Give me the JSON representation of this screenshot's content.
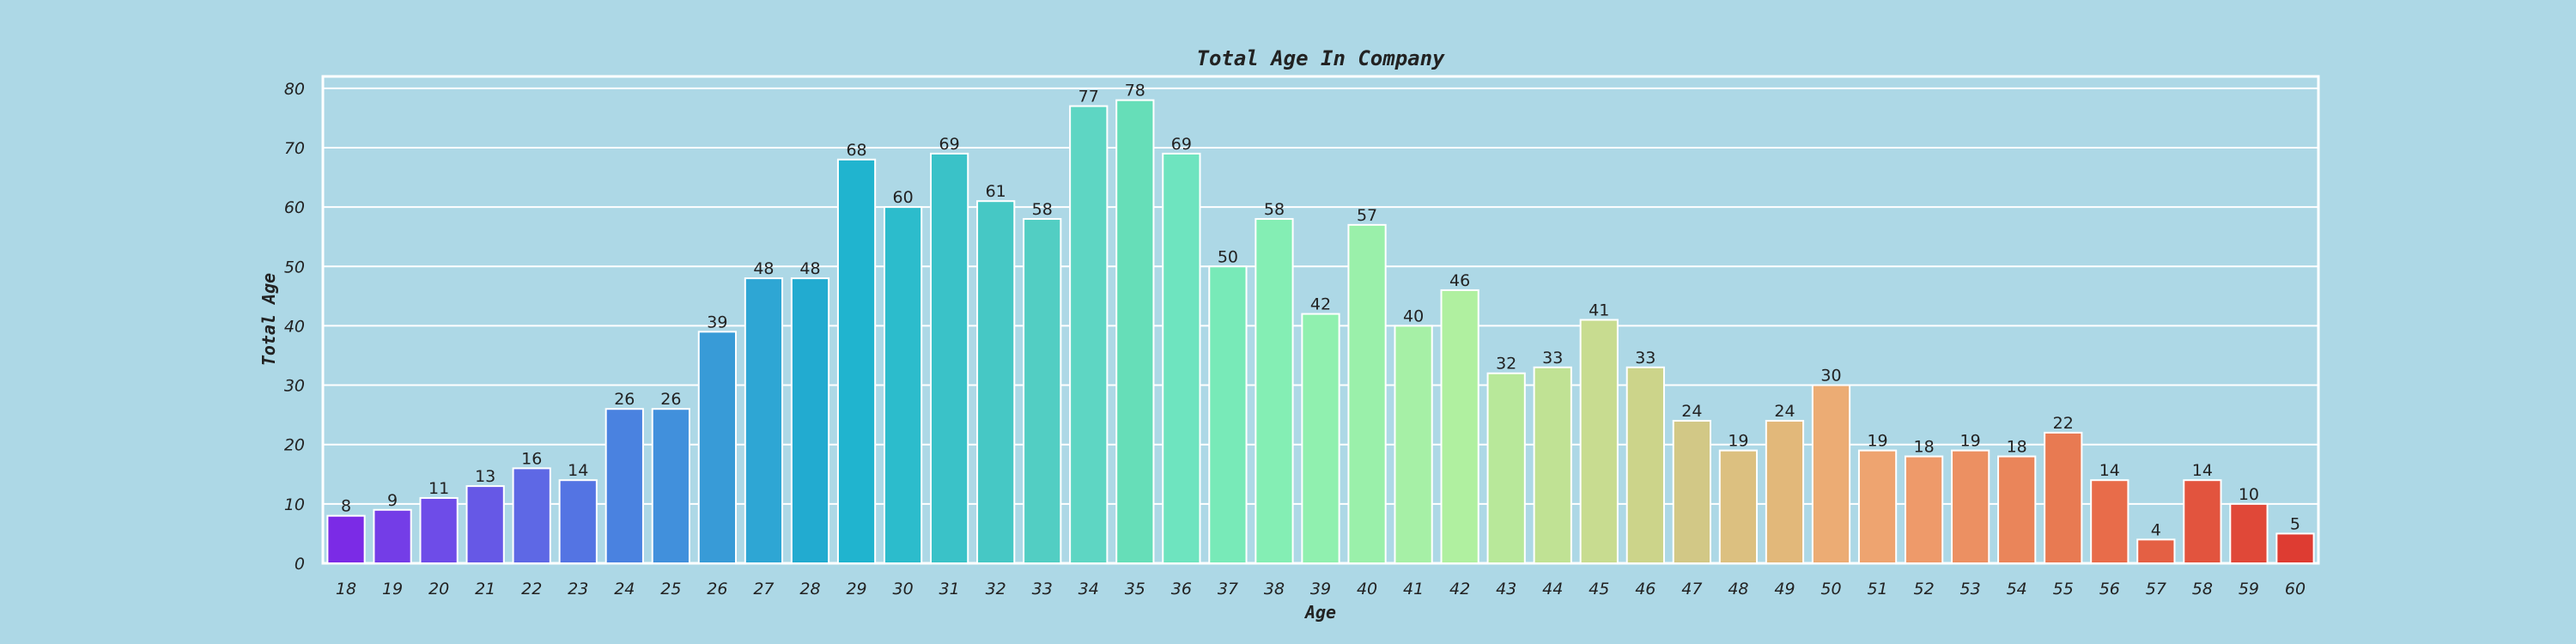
{
  "chart_data": {
    "type": "bar",
    "title": "Total Age In Company",
    "xlabel": "Age",
    "ylabel": "Total Age",
    "categories": [
      "18",
      "19",
      "20",
      "21",
      "22",
      "23",
      "24",
      "25",
      "26",
      "27",
      "28",
      "29",
      "30",
      "31",
      "32",
      "33",
      "34",
      "35",
      "36",
      "37",
      "38",
      "39",
      "40",
      "41",
      "42",
      "43",
      "44",
      "45",
      "46",
      "47",
      "48",
      "49",
      "50",
      "51",
      "52",
      "53",
      "54",
      "55",
      "56",
      "57",
      "58",
      "59",
      "60"
    ],
    "values": [
      8,
      9,
      11,
      13,
      16,
      14,
      26,
      26,
      39,
      48,
      48,
      68,
      60,
      69,
      61,
      58,
      77,
      78,
      69,
      50,
      58,
      42,
      57,
      40,
      46,
      32,
      33,
      41,
      33,
      24,
      19,
      24,
      30,
      19,
      18,
      19,
      18,
      22,
      14,
      4,
      14,
      10,
      5
    ],
    "yticks": [
      0,
      10,
      20,
      30,
      40,
      50,
      60,
      70,
      80
    ],
    "ylim": [
      0,
      82
    ],
    "grid": true,
    "colors": [
      "#7b2be6",
      "#743de7",
      "#6e4ce8",
      "#6658e6",
      "#5e68e5",
      "#5474e3",
      "#4a82e0",
      "#4190dc",
      "#389bd7",
      "#2ea6d4",
      "#22abd0",
      "#20b4cf",
      "#2cbccc",
      "#3ac2c8",
      "#46c8c5",
      "#52cec3",
      "#5ed6c3",
      "#66deb8",
      "#6ee4bf",
      "#78eab8",
      "#84eeb4",
      "#90f0af",
      "#9af0aa",
      "#a6f0a6",
      "#b0f0a0",
      "#b8e89a",
      "#c0e294",
      "#c8dc90",
      "#ccd48a",
      "#d2c886",
      "#dcc080",
      "#e2b87a",
      "#ecac74",
      "#eea470",
      "#ee9a6a",
      "#ec9062",
      "#ea855a",
      "#e87a52",
      "#e86c4a",
      "#e46044",
      "#e2543e",
      "#e04838",
      "#de3c32"
    ]
  }
}
